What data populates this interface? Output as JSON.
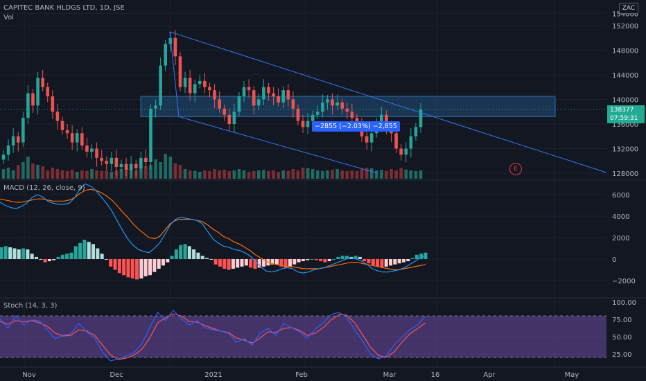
{
  "header": {
    "symbol": "CAPITEC BANK HLDGS LTD, 1D, JSE",
    "volume_label": "Vol",
    "currency_badge": "ZAC"
  },
  "last_price": {
    "value": "138377",
    "countdown": "07:59:31"
  },
  "measure_label": "−2855 (−2.03%) −2,855",
  "earnings_marker": "E",
  "indicators": {
    "macd_label": "MACD (12, 26, close, 9)",
    "stoch_label": "Stoch (14, 3, 3)"
  },
  "colors": {
    "up": "#26a69a",
    "down": "#ef5350",
    "trendline": "#3179f5",
    "zone": "#1f4e7a",
    "macd": "#2196f3",
    "signal": "#ff6d00",
    "stoch_k": "#2962ff",
    "stoch_d": "#ff5252",
    "stoch_band": "#7e57c2"
  },
  "chart_data": [
    {
      "type": "candlestick",
      "title": "CAPITEC BANK HLDGS LTD, 1D, JSE",
      "ylim": [
        126000,
        154000
      ],
      "y_ticks": [
        "154000",
        "152000",
        "148000",
        "144000",
        "140000",
        "136000",
        "132000",
        "128000"
      ],
      "x_ticks": [
        "Nov",
        "Dec",
        "2021",
        "Feb",
        "Mar",
        "16",
        "Apr",
        "May"
      ],
      "resistance_zone": [
        137200,
        140500
      ],
      "closes": [
        131000,
        132500,
        134000,
        133000,
        137000,
        141000,
        139000,
        143500,
        142000,
        140500,
        138000,
        136500,
        135000,
        134500,
        133000,
        134500,
        132500,
        131500,
        132000,
        130500,
        130000,
        129500,
        130500,
        129000,
        129500,
        128500,
        129500,
        128800,
        130500,
        129800,
        138500,
        139000,
        145500,
        149000,
        150000,
        147000,
        142000,
        143500,
        141000,
        142500,
        143000,
        142000,
        141500,
        140000,
        138500,
        137500,
        136000,
        138000,
        140500,
        142000,
        141500,
        139000,
        140000,
        142000,
        141000,
        140500,
        139500,
        141500,
        140000,
        138500,
        136500,
        135500,
        136500,
        137500,
        138000,
        139500,
        140000,
        139000,
        139500,
        138500,
        138000,
        137000,
        136000,
        134000,
        133000,
        134500,
        136000,
        137500,
        135500,
        134500,
        132000,
        131000,
        132000,
        134000,
        135500,
        138377
      ],
      "volume_relative": [
        0.35,
        0.4,
        0.3,
        0.5,
        0.6,
        0.8,
        0.55,
        0.5,
        0.45,
        0.3,
        0.4,
        0.35,
        0.3,
        0.28,
        0.32,
        0.25,
        0.3,
        0.28,
        0.35,
        0.3,
        0.28,
        0.3,
        0.25,
        0.3,
        0.35,
        0.28,
        0.32,
        0.3,
        0.4,
        0.45,
        0.5,
        0.7,
        0.6,
        0.9,
        0.8,
        0.55,
        0.5,
        0.35,
        0.3,
        0.28,
        0.25,
        0.3,
        0.28,
        0.35,
        0.3,
        0.32,
        0.28,
        0.3,
        0.35,
        0.3,
        0.25,
        0.28,
        0.3,
        0.32,
        0.28,
        0.3,
        0.25,
        0.3,
        0.28,
        0.35,
        0.3,
        0.4,
        0.38,
        0.35,
        0.3,
        0.28,
        0.3,
        0.32,
        0.35,
        0.3,
        0.28,
        0.3,
        0.28,
        0.35,
        0.4,
        0.38,
        0.3,
        0.32,
        0.28,
        0.35,
        0.3,
        0.38,
        0.33,
        0.3,
        0.28,
        0.3
      ]
    },
    {
      "type": "macd",
      "title": "MACD (12, 26, close, 9)",
      "ylim": [
        -3000,
        7000
      ],
      "y_ticks": [
        "6000",
        "4000",
        "2000",
        "0",
        "−2000"
      ],
      "histogram": [
        1100,
        1200,
        1100,
        1000,
        900,
        1000,
        900,
        500,
        200,
        0,
        -300,
        -200,
        -100,
        200,
        400,
        500,
        600,
        1200,
        1500,
        1800,
        1600,
        1400,
        1000,
        500,
        0,
        -700,
        -1000,
        -1300,
        -1500,
        -1700,
        -1800,
        -1900,
        -1800,
        -1600,
        -1500,
        -1200,
        -900,
        -600,
        -300,
        300,
        900,
        1300,
        1400,
        1200,
        900,
        600,
        300,
        100,
        0,
        -500,
        -700,
        -900,
        -1000,
        -900,
        -800,
        -700,
        -600,
        -800,
        -900,
        -800,
        -700,
        -600,
        -500,
        -500,
        -700,
        -800,
        -700,
        -500,
        -300,
        -200,
        -100,
        0,
        -100,
        -200,
        -300,
        -200,
        0,
        200,
        300,
        300,
        200,
        300,
        200,
        -200,
        -400,
        -600,
        -700,
        -800,
        -700,
        -600,
        -500,
        -400,
        -300,
        -200,
        100,
        400,
        500,
        600
      ],
      "macd": [
        5300,
        5000,
        4800,
        4700,
        4900,
        5200,
        5700,
        6000,
        5800,
        5400,
        5200,
        5100,
        5100,
        5200,
        5700,
        6500,
        7000,
        6800,
        6400,
        5800,
        5200,
        4500,
        3600,
        2700,
        1900,
        1300,
        900,
        700,
        600,
        1000,
        1500,
        2300,
        3200,
        3700,
        3900,
        3800,
        3700,
        3600,
        3300,
        2600,
        1900,
        1500,
        1200,
        1100,
        900,
        800,
        600,
        300,
        -200,
        -700,
        -1100,
        -1200,
        -1100,
        -900,
        -800,
        -900,
        -1200,
        -1300,
        -1200,
        -1000,
        -900,
        -800,
        -600,
        -400,
        -200,
        0,
        100,
        0,
        -200,
        -500,
        -900,
        -1100,
        -1200,
        -1200,
        -1100,
        -1000,
        -800,
        -500,
        -200,
        100,
        300
      ],
      "signal": [
        5600,
        5500,
        5400,
        5300,
        5300,
        5400,
        5500,
        5600,
        5600,
        5500,
        5400,
        5400,
        5400,
        5500,
        5700,
        6100,
        6400,
        6500,
        6400,
        6200,
        5900,
        5500,
        5000,
        4400,
        3900,
        3300,
        2800,
        2400,
        2000,
        1900,
        2100,
        2700,
        3300,
        3600,
        3700,
        3700,
        3700,
        3600,
        3500,
        3200,
        2800,
        2500,
        2100,
        1900,
        1600,
        1400,
        1100,
        800,
        400,
        100,
        -200,
        -400,
        -500,
        -600,
        -700,
        -700,
        -800,
        -900,
        -900,
        -900,
        -900,
        -800,
        -700,
        -600,
        -500,
        -400,
        -300,
        -300,
        -400,
        -500,
        -600,
        -700,
        -800,
        -900,
        -1000,
        -1000,
        -900,
        -800,
        -700,
        -600,
        -500
      ]
    },
    {
      "type": "stochastic",
      "title": "Stoch (14, 3, 3)",
      "ylim": [
        10,
        100
      ],
      "band": [
        20,
        80
      ],
      "y_ticks": [
        "100.00",
        "75.00",
        "50.00",
        "25.00"
      ],
      "k": [
        76,
        62,
        80,
        67,
        74,
        73,
        60,
        47,
        52,
        54,
        69,
        57,
        48,
        28,
        15,
        18,
        22,
        27,
        40,
        63,
        85,
        73,
        88,
        76,
        67,
        73,
        63,
        60,
        58,
        55,
        42,
        47,
        38,
        55,
        62,
        52,
        69,
        63,
        57,
        48,
        61,
        70,
        82,
        85,
        78,
        60,
        44,
        25,
        18,
        22,
        38,
        49,
        60,
        67,
        80
      ],
      "d": [
        72,
        68,
        73,
        72,
        73,
        70,
        65,
        55,
        51,
        52,
        60,
        58,
        52,
        38,
        24,
        17,
        19,
        23,
        32,
        48,
        70,
        77,
        83,
        80,
        72,
        71,
        66,
        62,
        58,
        56,
        48,
        45,
        41,
        48,
        57,
        56,
        62,
        63,
        59,
        52,
        55,
        63,
        74,
        82,
        81,
        70,
        53,
        35,
        23,
        20,
        28,
        42,
        54,
        62,
        70
      ]
    }
  ]
}
